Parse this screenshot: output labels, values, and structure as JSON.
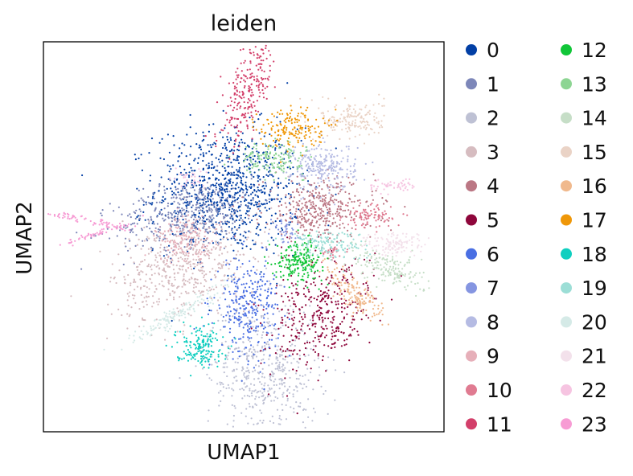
{
  "chart_data": {
    "type": "scatter",
    "title": "leiden",
    "xlabel": "UMAP1",
    "ylabel": "UMAP2",
    "xticks": [],
    "yticks": [],
    "grid": false,
    "legend_position": "right, outside, two columns",
    "xlim": [
      0,
      100
    ],
    "ylim": [
      0,
      100
    ],
    "series": [
      {
        "name": "0",
        "color": "#023fa5",
        "clusters": [
          {
            "cx": 46,
            "cy": 62,
            "sx": 9,
            "sy": 8,
            "n": 900
          }
        ]
      },
      {
        "name": "1",
        "color": "#7d87b9",
        "clusters": [
          {
            "cx": 36,
            "cy": 56,
            "sx": 9,
            "sy": 4,
            "n": 420,
            "rot": 12
          }
        ]
      },
      {
        "name": "2",
        "color": "#bec1d4",
        "clusters": [
          {
            "cx": 55,
            "cy": 16,
            "sx": 7,
            "sy": 9,
            "n": 520
          }
        ]
      },
      {
        "name": "3",
        "color": "#d6bcc0",
        "clusters": [
          {
            "cx": 35,
            "cy": 42,
            "sx": 9,
            "sy": 6,
            "n": 520,
            "rot": 20
          }
        ]
      },
      {
        "name": "4",
        "color": "#bb7784",
        "clusters": [
          {
            "cx": 69,
            "cy": 57,
            "sx": 7,
            "sy": 4,
            "n": 380
          }
        ]
      },
      {
        "name": "5",
        "color": "#8e063b",
        "clusters": [
          {
            "cx": 69,
            "cy": 30,
            "sx": 6,
            "sy": 7,
            "n": 380,
            "rot": -35
          }
        ]
      },
      {
        "name": "6",
        "color": "#4a6fe3",
        "clusters": [
          {
            "cx": 51,
            "cy": 32,
            "sx": 4,
            "sy": 6,
            "n": 300
          }
        ]
      },
      {
        "name": "7",
        "color": "#8595e1",
        "clusters": [
          {
            "cx": 60,
            "cy": 52,
            "sx": 2,
            "sy": 2,
            "n": 40
          }
        ]
      },
      {
        "name": "8",
        "color": "#b5bbe3",
        "clusters": [
          {
            "cx": 70,
            "cy": 68,
            "sx": 4,
            "sy": 3,
            "n": 240
          }
        ]
      },
      {
        "name": "9",
        "color": "#e6afb9",
        "clusters": [
          {
            "cx": 36,
            "cy": 49,
            "sx": 4,
            "sy": 3,
            "n": 160
          }
        ]
      },
      {
        "name": "10",
        "color": "#e07b91",
        "clusters": [
          {
            "cx": 81,
            "cy": 55,
            "sx": 3,
            "sy": 1.5,
            "n": 90
          },
          {
            "cx": 72,
            "cy": 46,
            "sx": 2,
            "sy": 1,
            "n": 30
          }
        ]
      },
      {
        "name": "11",
        "color": "#d33f6a",
        "clusters": [
          {
            "cx": 51,
            "cy": 87,
            "sx": 2.5,
            "sy": 7,
            "n": 230,
            "rot": -18
          }
        ]
      },
      {
        "name": "12",
        "color": "#11c638",
        "clusters": [
          {
            "cx": 64,
            "cy": 44,
            "sx": 3,
            "sy": 2.5,
            "n": 200
          }
        ]
      },
      {
        "name": "13",
        "color": "#8dd593",
        "clusters": [
          {
            "cx": 57,
            "cy": 70,
            "sx": 4,
            "sy": 2,
            "n": 150
          }
        ]
      },
      {
        "name": "14",
        "color": "#c6dec7",
        "clusters": [
          {
            "cx": 86,
            "cy": 42,
            "sx": 5,
            "sy": 2,
            "n": 170,
            "rot": -25
          }
        ]
      },
      {
        "name": "15",
        "color": "#ead3c6",
        "clusters": [
          {
            "cx": 77,
            "cy": 80,
            "sx": 4,
            "sy": 2.5,
            "n": 170
          }
        ]
      },
      {
        "name": "16",
        "color": "#f0b98d",
        "clusters": [
          {
            "cx": 78,
            "cy": 35,
            "sx": 5,
            "sy": 2,
            "n": 150,
            "rot": -40
          }
        ]
      },
      {
        "name": "17",
        "color": "#ef9708",
        "clusters": [
          {
            "cx": 62,
            "cy": 78,
            "sx": 4,
            "sy": 2.5,
            "n": 170
          }
        ]
      },
      {
        "name": "18",
        "color": "#0fcfc0",
        "clusters": [
          {
            "cx": 39,
            "cy": 22,
            "sx": 3,
            "sy": 2.5,
            "n": 170
          }
        ]
      },
      {
        "name": "19",
        "color": "#9cded6",
        "clusters": [
          {
            "cx": 70,
            "cy": 48,
            "sx": 5,
            "sy": 2,
            "n": 150
          }
        ]
      },
      {
        "name": "20",
        "color": "#d5eae7",
        "clusters": [
          {
            "cx": 33,
            "cy": 30,
            "sx": 8,
            "sy": 1,
            "n": 140,
            "rot": 30
          }
        ]
      },
      {
        "name": "21",
        "color": "#f3e1eb",
        "clusters": [
          {
            "cx": 88,
            "cy": 48,
            "sx": 4,
            "sy": 1.5,
            "n": 120
          }
        ]
      },
      {
        "name": "22",
        "color": "#f6c4e1",
        "clusters": [
          {
            "cx": 87,
            "cy": 63,
            "sx": 3,
            "sy": 1,
            "n": 50
          },
          {
            "cx": 36,
            "cy": 65,
            "sx": 2,
            "sy": 1,
            "n": 30
          }
        ]
      },
      {
        "name": "23",
        "color": "#f79cd4",
        "clusters": [
          {
            "cx": 12,
            "cy": 54,
            "sx": 6,
            "sy": 0.6,
            "n": 70,
            "rot": -12
          },
          {
            "cx": 14,
            "cy": 51,
            "sx": 5,
            "sy": 0.4,
            "n": 50,
            "rot": 18
          }
        ]
      }
    ]
  }
}
